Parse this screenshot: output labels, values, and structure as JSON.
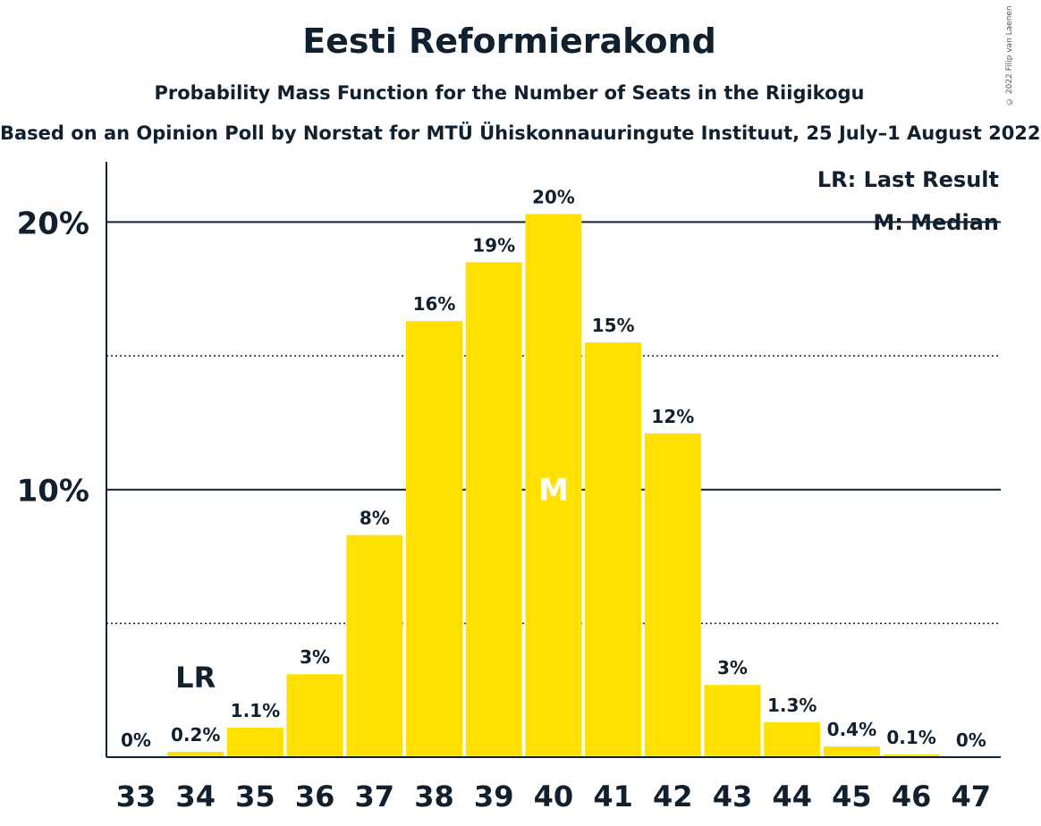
{
  "header": {
    "title": "Eesti Reformierakond",
    "subtitle": "Probability Mass Function for the Number of Seats in the Riigikogu",
    "source": "Based on an Opinion Poll by Norstat for MTÜ Ühiskonnauuringute Instituut, 25 July–1 August 2022",
    "copyright": "© 2022 Filip van Laenen"
  },
  "chart_data": {
    "type": "bar",
    "title": "Eesti Reformierakond",
    "subtitle": "Probability Mass Function for the Number of Seats in the Riigikogu",
    "categories": [
      "33",
      "34",
      "35",
      "36",
      "37",
      "38",
      "39",
      "40",
      "41",
      "42",
      "43",
      "44",
      "45",
      "46",
      "47"
    ],
    "values": [
      0,
      0.2,
      1.1,
      3.1,
      8.3,
      16.3,
      18.5,
      20.3,
      15.5,
      12.1,
      2.7,
      1.3,
      0.4,
      0.1,
      0
    ],
    "value_labels": [
      "0%",
      "0.2%",
      "1.1%",
      "3%",
      "8%",
      "16%",
      "19%",
      "20%",
      "15%",
      "12%",
      "3%",
      "1.3%",
      "0.4%",
      "0.1%",
      "0%"
    ],
    "ylim": [
      0,
      22.2
    ],
    "y_ticks": [
      {
        "value": 10,
        "label": "10%",
        "style": "solid"
      },
      {
        "value": 20,
        "label": "20%",
        "style": "solid"
      }
    ],
    "y_minor_gridlines": [
      5,
      15
    ],
    "last_result_seat": "34",
    "last_result_label": "LR",
    "median_seat": "40",
    "median_label": "M",
    "legend": {
      "position": "top-right",
      "items": [
        "LR: Last Result",
        "M: Median"
      ]
    },
    "bar_color": "#FFE000",
    "text_color": "#10202E"
  }
}
